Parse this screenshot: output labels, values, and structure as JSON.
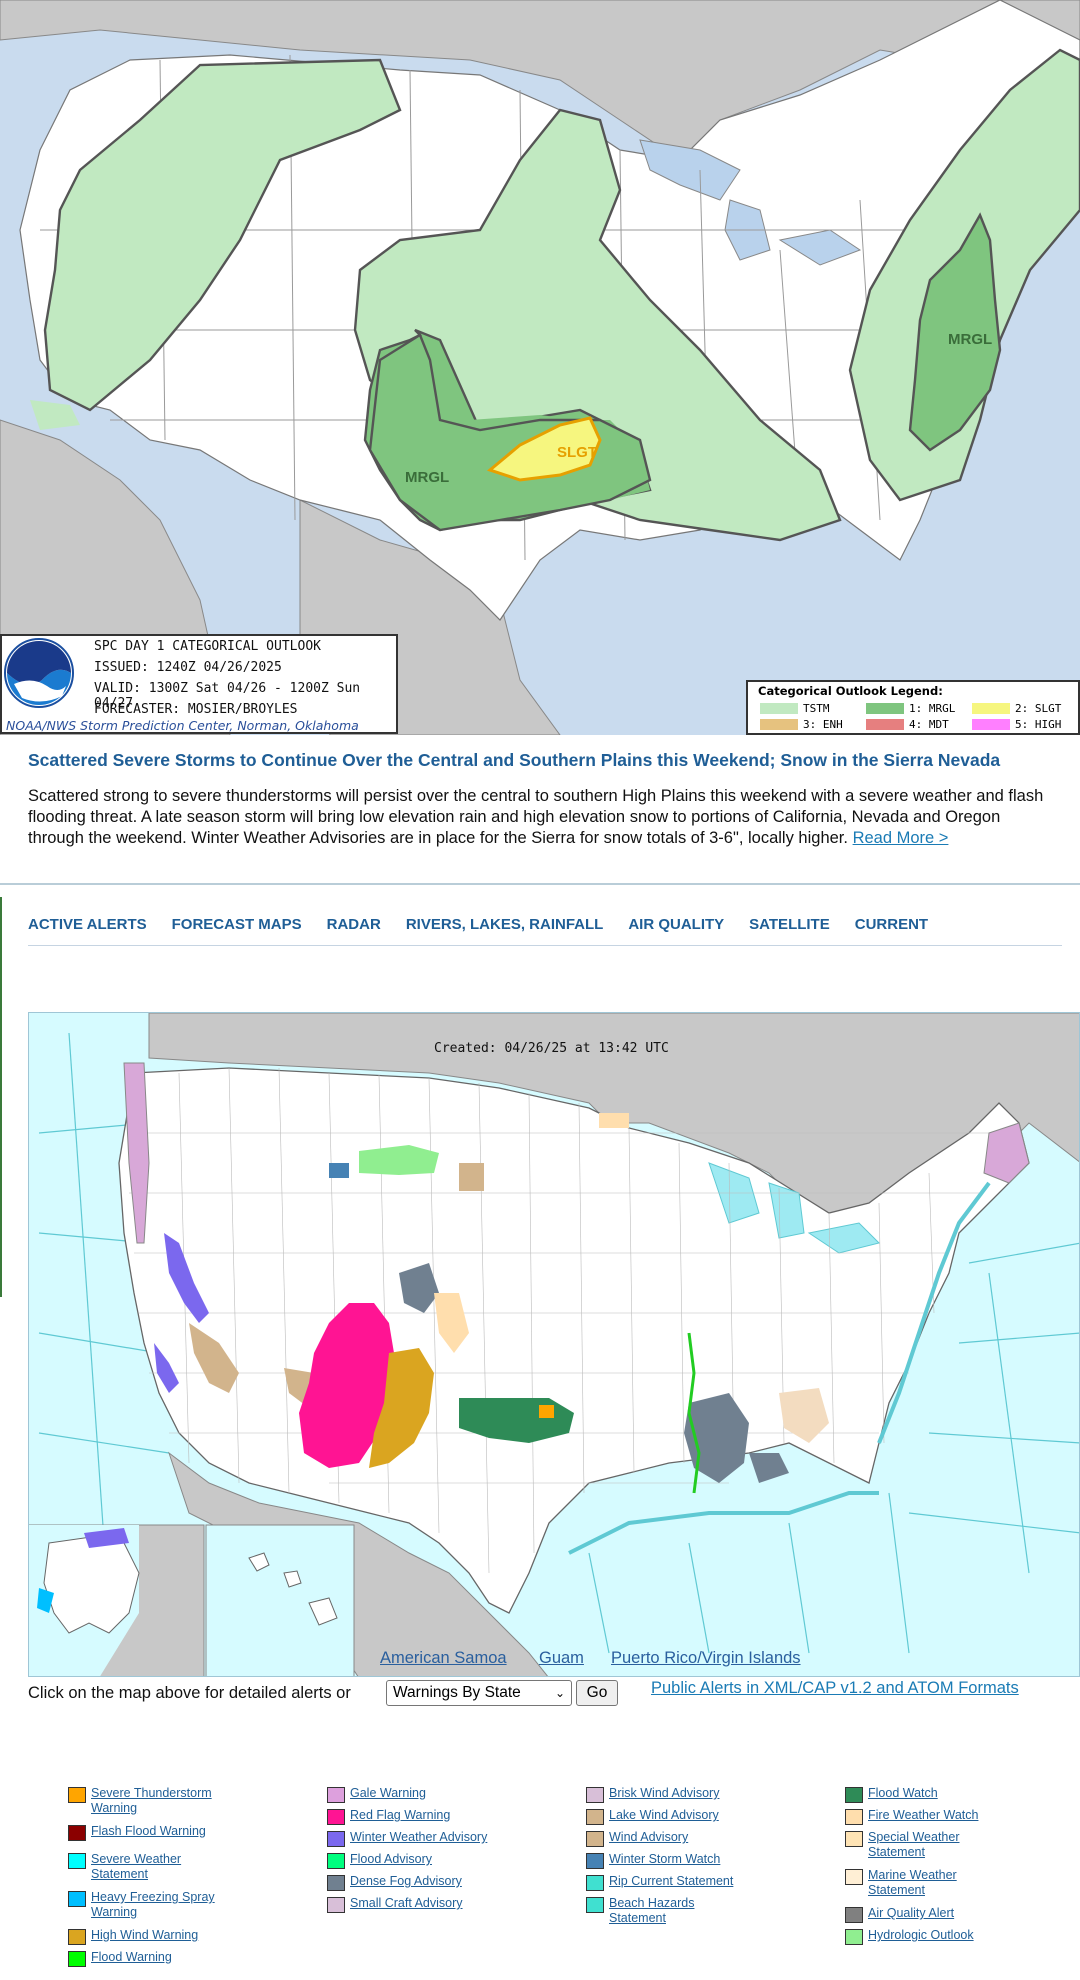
{
  "outlook": {
    "labels": {
      "slgt": "SLGT",
      "mrgl_west": "MRGL",
      "mrgl_east": "MRGL"
    },
    "info": {
      "title": "SPC DAY 1 CATEGORICAL OUTLOOK",
      "issued": "ISSUED: 1240Z 04/26/2025",
      "valid": "VALID: 1300Z Sat 04/26 - 1200Z Sun 04/27",
      "forecaster": "FORECASTER: MOSIER/BROYLES",
      "credit": "NOAA/NWS Storm Prediction Center, Norman, Oklahoma",
      "logo_text": "NOAA"
    },
    "legend": {
      "title": "Categorical Outlook Legend:",
      "items": [
        {
          "label": "TSTM",
          "color": "#c1e9c1"
        },
        {
          "label": "1: MRGL",
          "color": "#7fc57f"
        },
        {
          "label": "2: SLGT",
          "color": "#f6f67f"
        },
        {
          "label": "3: ENH",
          "color": "#e6c27f"
        },
        {
          "label": "4: MDT",
          "color": "#e67f7f"
        },
        {
          "label": "5: HIGH",
          "color": "#ff7fff"
        }
      ]
    }
  },
  "headline": "Scattered Severe Storms to Continue Over the Central and Southern Plains this Weekend; Snow in the Sierra Nevada",
  "summary": "Scattered strong to severe thunderstorms will persist over the central to southern High Plains this weekend with a severe weather and flash flooding threat. A late season storm will bring low elevation rain and high elevation snow to portions of California, Nevada and Oregon through the weekend. Winter Weather Advisories are in place for the Sierra for snow totals of 3-6\", locally higher.",
  "read_more": "Read More >",
  "nav": [
    "ACTIVE ALERTS",
    "FORECAST MAPS",
    "RADAR",
    "RIVERS, LAKES, RAINFALL",
    "AIR QUALITY",
    "SATELLITE",
    "CURRENT"
  ],
  "alerts_map": {
    "created": "Created: 04/26/25 at 13:42 UTC",
    "territories": [
      "American Samoa",
      "Guam",
      "Puerto Rico/Virgin Islands"
    ]
  },
  "controls": {
    "prompt": "Click on the map above for detailed alerts or",
    "select_value": "Warnings By State",
    "go_label": "Go",
    "xml_link": "Public Alerts in XML/CAP v1.2 and ATOM Formats"
  },
  "legend_columns": [
    [
      {
        "label": "Severe Thunderstorm Warning",
        "color": "#ffa500"
      },
      {
        "label": "Flash Flood Warning",
        "color": "#8b0000"
      },
      {
        "label": "Severe Weather Statement",
        "color": "#00ffff"
      },
      {
        "label": "Heavy Freezing Spray Warning",
        "color": "#00bfff"
      },
      {
        "label": "High Wind Warning",
        "color": "#daa520"
      },
      {
        "label": "Flood Warning",
        "color": "#00ff00"
      }
    ],
    [
      {
        "label": "Gale Warning",
        "color": "#dda0dd"
      },
      {
        "label": "Red Flag Warning",
        "color": "#ff1493"
      },
      {
        "label": "Winter Weather Advisory",
        "color": "#7b68ee"
      },
      {
        "label": "Flood Advisory",
        "color": "#00ff7f"
      },
      {
        "label": "Dense Fog Advisory",
        "color": "#708090"
      },
      {
        "label": "Small Craft Advisory",
        "color": "#d8bfd8"
      }
    ],
    [
      {
        "label": "Brisk Wind Advisory",
        "color": "#d8bfd8"
      },
      {
        "label": "Lake Wind Advisory",
        "color": "#d2b48c"
      },
      {
        "label": "Wind Advisory",
        "color": "#d2b48c"
      },
      {
        "label": "Winter Storm Watch",
        "color": "#4682b4"
      },
      {
        "label": "Rip Current Statement",
        "color": "#40e0d0"
      },
      {
        "label": "Beach Hazards Statement",
        "color": "#40e0d0"
      }
    ],
    [
      {
        "label": "Flood Watch",
        "color": "#2e8b57"
      },
      {
        "label": "Fire Weather Watch",
        "color": "#ffdead"
      },
      {
        "label": "Special Weather Statement",
        "color": "#ffe4b5"
      },
      {
        "label": "Marine Weather Statement",
        "color": "#ffefd5"
      },
      {
        "label": "Air Quality Alert",
        "color": "#808080"
      },
      {
        "label": "Hydrologic Outlook",
        "color": "#90ee90"
      }
    ]
  ]
}
